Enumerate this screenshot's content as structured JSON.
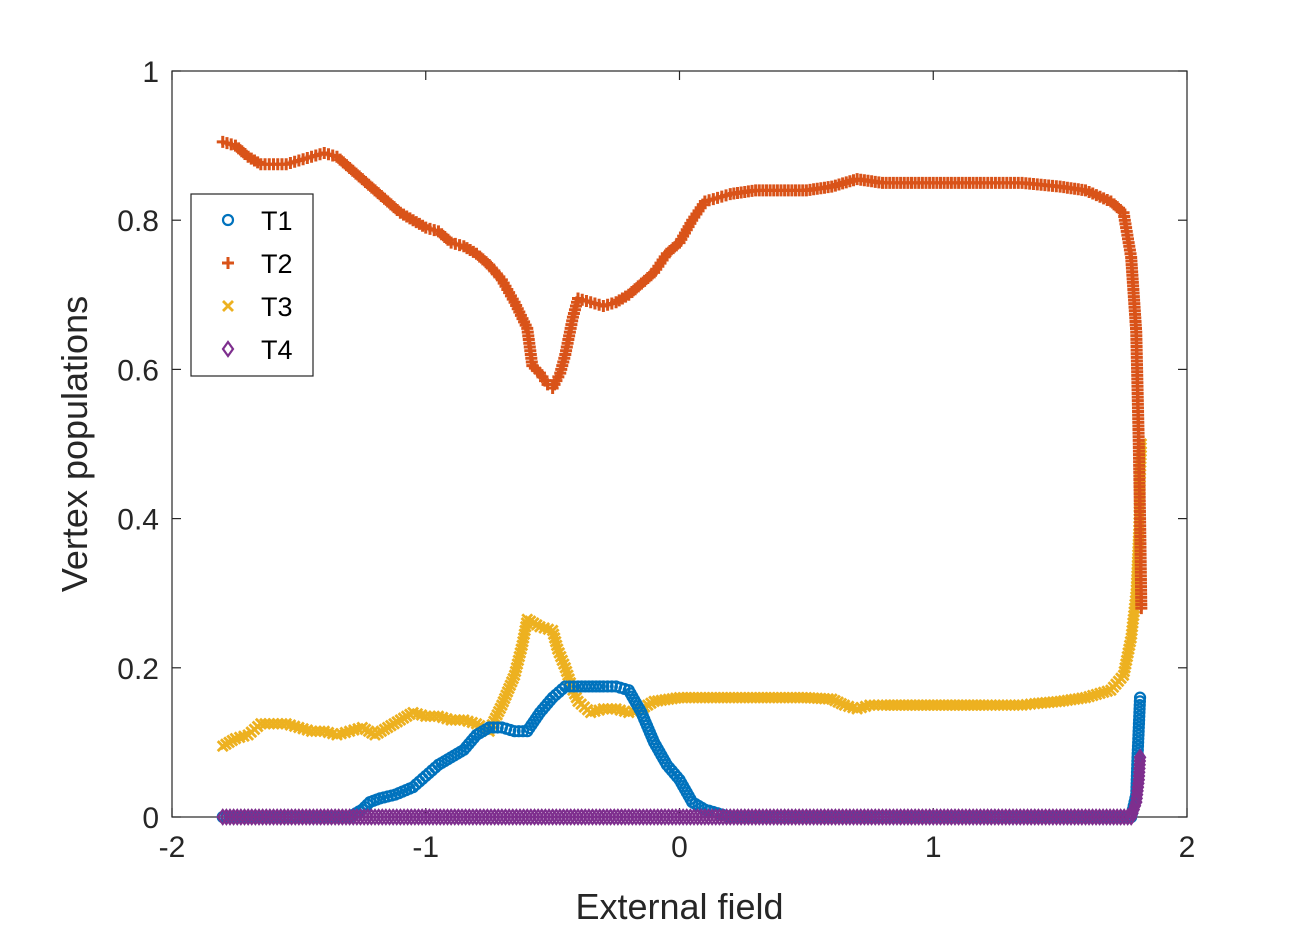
{
  "chart_data": {
    "type": "scatter",
    "xlabel": "External field",
    "ylabel": "Vertex populations",
    "xlim": [
      -2,
      2
    ],
    "ylim": [
      0,
      1
    ],
    "xticks": [
      "-2",
      "-1",
      "0",
      "1",
      "2"
    ],
    "yticks": [
      "0",
      "0.2",
      "0.4",
      "0.6",
      "0.8",
      "1"
    ],
    "grid": false,
    "legend_position": "upper-left",
    "series": [
      {
        "name": "T1",
        "marker": "circle",
        "color": "#0072BD",
        "points": [
          [
            -1.8,
            0
          ],
          [
            -1.3,
            0
          ],
          [
            -1.25,
            0.01
          ],
          [
            -1.22,
            0.02
          ],
          [
            -1.18,
            0.025
          ],
          [
            -1.12,
            0.03
          ],
          [
            -1.05,
            0.04
          ],
          [
            -1.0,
            0.055
          ],
          [
            -0.95,
            0.07
          ],
          [
            -0.9,
            0.08
          ],
          [
            -0.85,
            0.09
          ],
          [
            -0.8,
            0.11
          ],
          [
            -0.75,
            0.12
          ],
          [
            -0.7,
            0.12
          ],
          [
            -0.65,
            0.115
          ],
          [
            -0.6,
            0.115
          ],
          [
            -0.55,
            0.14
          ],
          [
            -0.5,
            0.16
          ],
          [
            -0.45,
            0.175
          ],
          [
            -0.4,
            0.175
          ],
          [
            -0.3,
            0.175
          ],
          [
            -0.25,
            0.175
          ],
          [
            -0.2,
            0.17
          ],
          [
            -0.15,
            0.14
          ],
          [
            -0.1,
            0.1
          ],
          [
            -0.05,
            0.07
          ],
          [
            0.0,
            0.05
          ],
          [
            0.05,
            0.02
          ],
          [
            0.1,
            0.01
          ],
          [
            0.15,
            0.005
          ],
          [
            0.2,
            0
          ],
          [
            1.0,
            0
          ],
          [
            1.78,
            0
          ],
          [
            1.8,
            0.03
          ],
          [
            1.805,
            0.08
          ],
          [
            1.81,
            0.12
          ],
          [
            1.815,
            0.16
          ]
        ]
      },
      {
        "name": "T2",
        "marker": "plus",
        "color": "#D95319",
        "points": [
          [
            -1.8,
            0.905
          ],
          [
            -1.75,
            0.9
          ],
          [
            -1.7,
            0.885
          ],
          [
            -1.65,
            0.875
          ],
          [
            -1.6,
            0.875
          ],
          [
            -1.55,
            0.875
          ],
          [
            -1.5,
            0.88
          ],
          [
            -1.45,
            0.885
          ],
          [
            -1.4,
            0.89
          ],
          [
            -1.35,
            0.885
          ],
          [
            -1.3,
            0.87
          ],
          [
            -1.25,
            0.855
          ],
          [
            -1.2,
            0.84
          ],
          [
            -1.15,
            0.825
          ],
          [
            -1.1,
            0.81
          ],
          [
            -1.05,
            0.8
          ],
          [
            -1.0,
            0.79
          ],
          [
            -0.95,
            0.785
          ],
          [
            -0.9,
            0.77
          ],
          [
            -0.85,
            0.765
          ],
          [
            -0.8,
            0.755
          ],
          [
            -0.75,
            0.74
          ],
          [
            -0.7,
            0.72
          ],
          [
            -0.65,
            0.69
          ],
          [
            -0.6,
            0.655
          ],
          [
            -0.58,
            0.605
          ],
          [
            -0.55,
            0.595
          ],
          [
            -0.52,
            0.58
          ],
          [
            -0.5,
            0.575
          ],
          [
            -0.47,
            0.595
          ],
          [
            -0.45,
            0.62
          ],
          [
            -0.42,
            0.67
          ],
          [
            -0.4,
            0.695
          ],
          [
            -0.35,
            0.69
          ],
          [
            -0.3,
            0.685
          ],
          [
            -0.25,
            0.69
          ],
          [
            -0.2,
            0.7
          ],
          [
            -0.15,
            0.715
          ],
          [
            -0.1,
            0.73
          ],
          [
            -0.05,
            0.755
          ],
          [
            0.0,
            0.77
          ],
          [
            0.05,
            0.8
          ],
          [
            0.1,
            0.825
          ],
          [
            0.15,
            0.83
          ],
          [
            0.2,
            0.835
          ],
          [
            0.3,
            0.84
          ],
          [
            0.4,
            0.84
          ],
          [
            0.5,
            0.84
          ],
          [
            0.6,
            0.845
          ],
          [
            0.7,
            0.855
          ],
          [
            0.8,
            0.85
          ],
          [
            1.0,
            0.85
          ],
          [
            1.2,
            0.85
          ],
          [
            1.35,
            0.85
          ],
          [
            1.5,
            0.845
          ],
          [
            1.6,
            0.84
          ],
          [
            1.7,
            0.825
          ],
          [
            1.75,
            0.81
          ],
          [
            1.78,
            0.75
          ],
          [
            1.8,
            0.65
          ],
          [
            1.81,
            0.5
          ],
          [
            1.815,
            0.4
          ],
          [
            1.82,
            0.28
          ]
        ]
      },
      {
        "name": "T3",
        "marker": "x",
        "color": "#EDB120",
        "points": [
          [
            -1.8,
            0.095
          ],
          [
            -1.75,
            0.105
          ],
          [
            -1.7,
            0.11
          ],
          [
            -1.65,
            0.125
          ],
          [
            -1.6,
            0.125
          ],
          [
            -1.55,
            0.125
          ],
          [
            -1.5,
            0.12
          ],
          [
            -1.45,
            0.115
          ],
          [
            -1.4,
            0.115
          ],
          [
            -1.35,
            0.11
          ],
          [
            -1.3,
            0.115
          ],
          [
            -1.25,
            0.12
          ],
          [
            -1.2,
            0.11
          ],
          [
            -1.15,
            0.12
          ],
          [
            -1.1,
            0.13
          ],
          [
            -1.05,
            0.14
          ],
          [
            -1.0,
            0.135
          ],
          [
            -0.95,
            0.135
          ],
          [
            -0.9,
            0.13
          ],
          [
            -0.85,
            0.13
          ],
          [
            -0.8,
            0.125
          ],
          [
            -0.75,
            0.115
          ],
          [
            -0.7,
            0.15
          ],
          [
            -0.65,
            0.19
          ],
          [
            -0.62,
            0.23
          ],
          [
            -0.6,
            0.265
          ],
          [
            -0.55,
            0.255
          ],
          [
            -0.5,
            0.25
          ],
          [
            -0.48,
            0.225
          ],
          [
            -0.45,
            0.2
          ],
          [
            -0.42,
            0.17
          ],
          [
            -0.4,
            0.155
          ],
          [
            -0.35,
            0.14
          ],
          [
            -0.3,
            0.145
          ],
          [
            -0.25,
            0.145
          ],
          [
            -0.2,
            0.14
          ],
          [
            -0.15,
            0.145
          ],
          [
            -0.1,
            0.155
          ],
          [
            0.0,
            0.16
          ],
          [
            0.1,
            0.16
          ],
          [
            0.3,
            0.16
          ],
          [
            0.5,
            0.16
          ],
          [
            0.6,
            0.158
          ],
          [
            0.65,
            0.15
          ],
          [
            0.7,
            0.145
          ],
          [
            0.75,
            0.15
          ],
          [
            0.8,
            0.15
          ],
          [
            1.0,
            0.15
          ],
          [
            1.2,
            0.15
          ],
          [
            1.35,
            0.15
          ],
          [
            1.4,
            0.152
          ],
          [
            1.5,
            0.155
          ],
          [
            1.6,
            0.16
          ],
          [
            1.7,
            0.17
          ],
          [
            1.75,
            0.19
          ],
          [
            1.78,
            0.24
          ],
          [
            1.8,
            0.3
          ],
          [
            1.81,
            0.38
          ],
          [
            1.815,
            0.45
          ],
          [
            1.82,
            0.5
          ]
        ]
      },
      {
        "name": "T4",
        "marker": "diamond",
        "color": "#7E2F8E",
        "points": [
          [
            -1.8,
            0
          ],
          [
            -1.6,
            0
          ],
          [
            -1.4,
            0
          ],
          [
            -1.2,
            0
          ],
          [
            -1.0,
            0
          ],
          [
            -0.8,
            0
          ],
          [
            -0.6,
            0
          ],
          [
            -0.4,
            0
          ],
          [
            -0.2,
            0
          ],
          [
            0.0,
            0
          ],
          [
            0.2,
            0
          ],
          [
            0.4,
            0
          ],
          [
            0.6,
            0
          ],
          [
            0.8,
            0
          ],
          [
            1.0,
            0
          ],
          [
            1.2,
            0
          ],
          [
            1.4,
            0
          ],
          [
            1.6,
            0
          ],
          [
            1.78,
            0
          ],
          [
            1.8,
            0.02
          ],
          [
            1.81,
            0.05
          ],
          [
            1.815,
            0.08
          ]
        ]
      }
    ]
  }
}
